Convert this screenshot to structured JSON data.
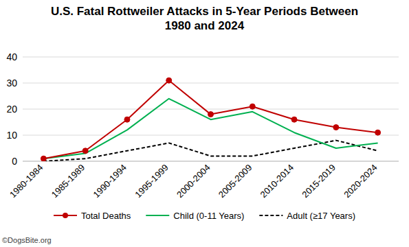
{
  "chart_data": {
    "type": "line",
    "title": "U.S. Fatal Rottweiler Attacks in 5-Year Periods Between 1980 and 2024",
    "categories": [
      "1980-1984",
      "1985-1989",
      "1990-1994",
      "1995-1999",
      "2000-2004",
      "2005-2009",
      "2010-2014",
      "2015-2019",
      "2020-2024"
    ],
    "series": [
      {
        "name": "Total Deaths",
        "color": "#c00000",
        "marker": "circle",
        "line_style": "solid",
        "values": [
          1,
          4,
          16,
          31,
          18,
          21,
          16,
          13,
          11
        ]
      },
      {
        "name": "Child (0-11 Years)",
        "color": "#00b050",
        "marker": "none",
        "line_style": "solid",
        "values": [
          1,
          3,
          12,
          24,
          16,
          19,
          11,
          5,
          7
        ]
      },
      {
        "name": "Adult (≥17 Years)",
        "color": "#000000",
        "marker": "none",
        "line_style": "dashed",
        "values": [
          0,
          1,
          4,
          7,
          2,
          2,
          5,
          8,
          4
        ]
      }
    ],
    "ylim": [
      0,
      40
    ],
    "yticks": [
      0,
      10,
      20,
      30,
      40
    ],
    "grid": true,
    "legend": "bottom",
    "source": "©DogsBite.org"
  }
}
